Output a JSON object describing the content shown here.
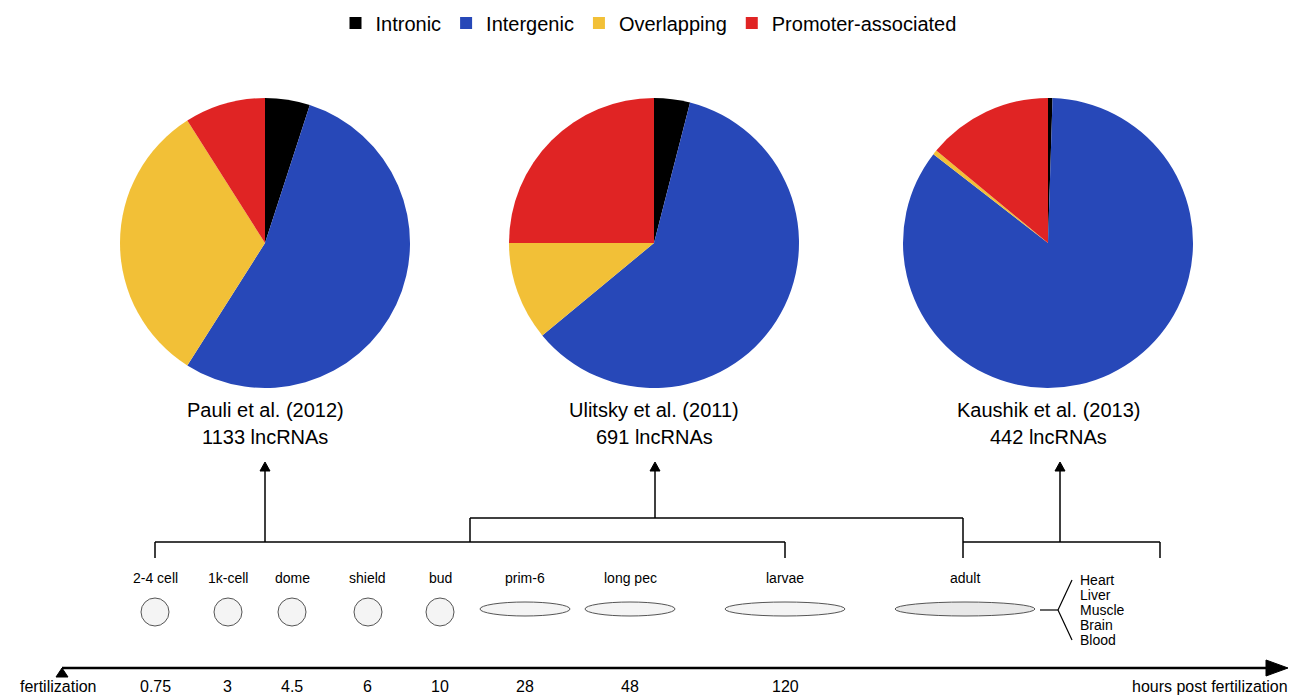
{
  "chart_data": [
    {
      "type": "pie",
      "title": "Pauli et al. (2012)",
      "subtitle": "1133 lncRNAs",
      "categories": [
        "Intronic",
        "Intergenic",
        "Overlapping",
        "Promoter-associated"
      ],
      "values": [
        5,
        54,
        32,
        9
      ],
      "colors": [
        "#000000",
        "#2748b8",
        "#f2c037",
        "#e02424"
      ],
      "legend": "top"
    },
    {
      "type": "pie",
      "title": "Ulitsky et al. (2011)",
      "subtitle": "691 lncRNAs",
      "categories": [
        "Intronic",
        "Intergenic",
        "Overlapping",
        "Promoter-associated"
      ],
      "values": [
        4,
        60,
        11,
        25
      ],
      "colors": [
        "#000000",
        "#2748b8",
        "#f2c037",
        "#e02424"
      ],
      "legend": "top"
    },
    {
      "type": "pie",
      "title": "Kaushik et al. (2013)",
      "subtitle": "442 lncRNAs",
      "categories": [
        "Intronic",
        "Intergenic",
        "Overlapping",
        "Promoter-associated"
      ],
      "values": [
        0.5,
        85,
        0.5,
        14
      ],
      "colors": [
        "#000000",
        "#2748b8",
        "#f2c037",
        "#e02424"
      ],
      "legend": "top"
    }
  ],
  "timeline": {
    "start_label": "fertilization",
    "axis_label": "hours post fertilization",
    "stages": [
      {
        "stage": "2-4 cell",
        "hours": 0.75
      },
      {
        "stage": "1k-cell",
        "hours": 3
      },
      {
        "stage": "dome",
        "hours": 4.5
      },
      {
        "stage": "shield",
        "hours": 6
      },
      {
        "stage": "bud",
        "hours": 10
      },
      {
        "stage": "prim-6",
        "hours": 28
      },
      {
        "stage": "long pec",
        "hours": 48
      },
      {
        "stage": "larvae",
        "hours": 120
      },
      {
        "stage": "adult",
        "hours": null
      }
    ],
    "tissues": [
      "Heart",
      "Liver",
      "Muscle",
      "Brain",
      "Blood"
    ]
  }
}
